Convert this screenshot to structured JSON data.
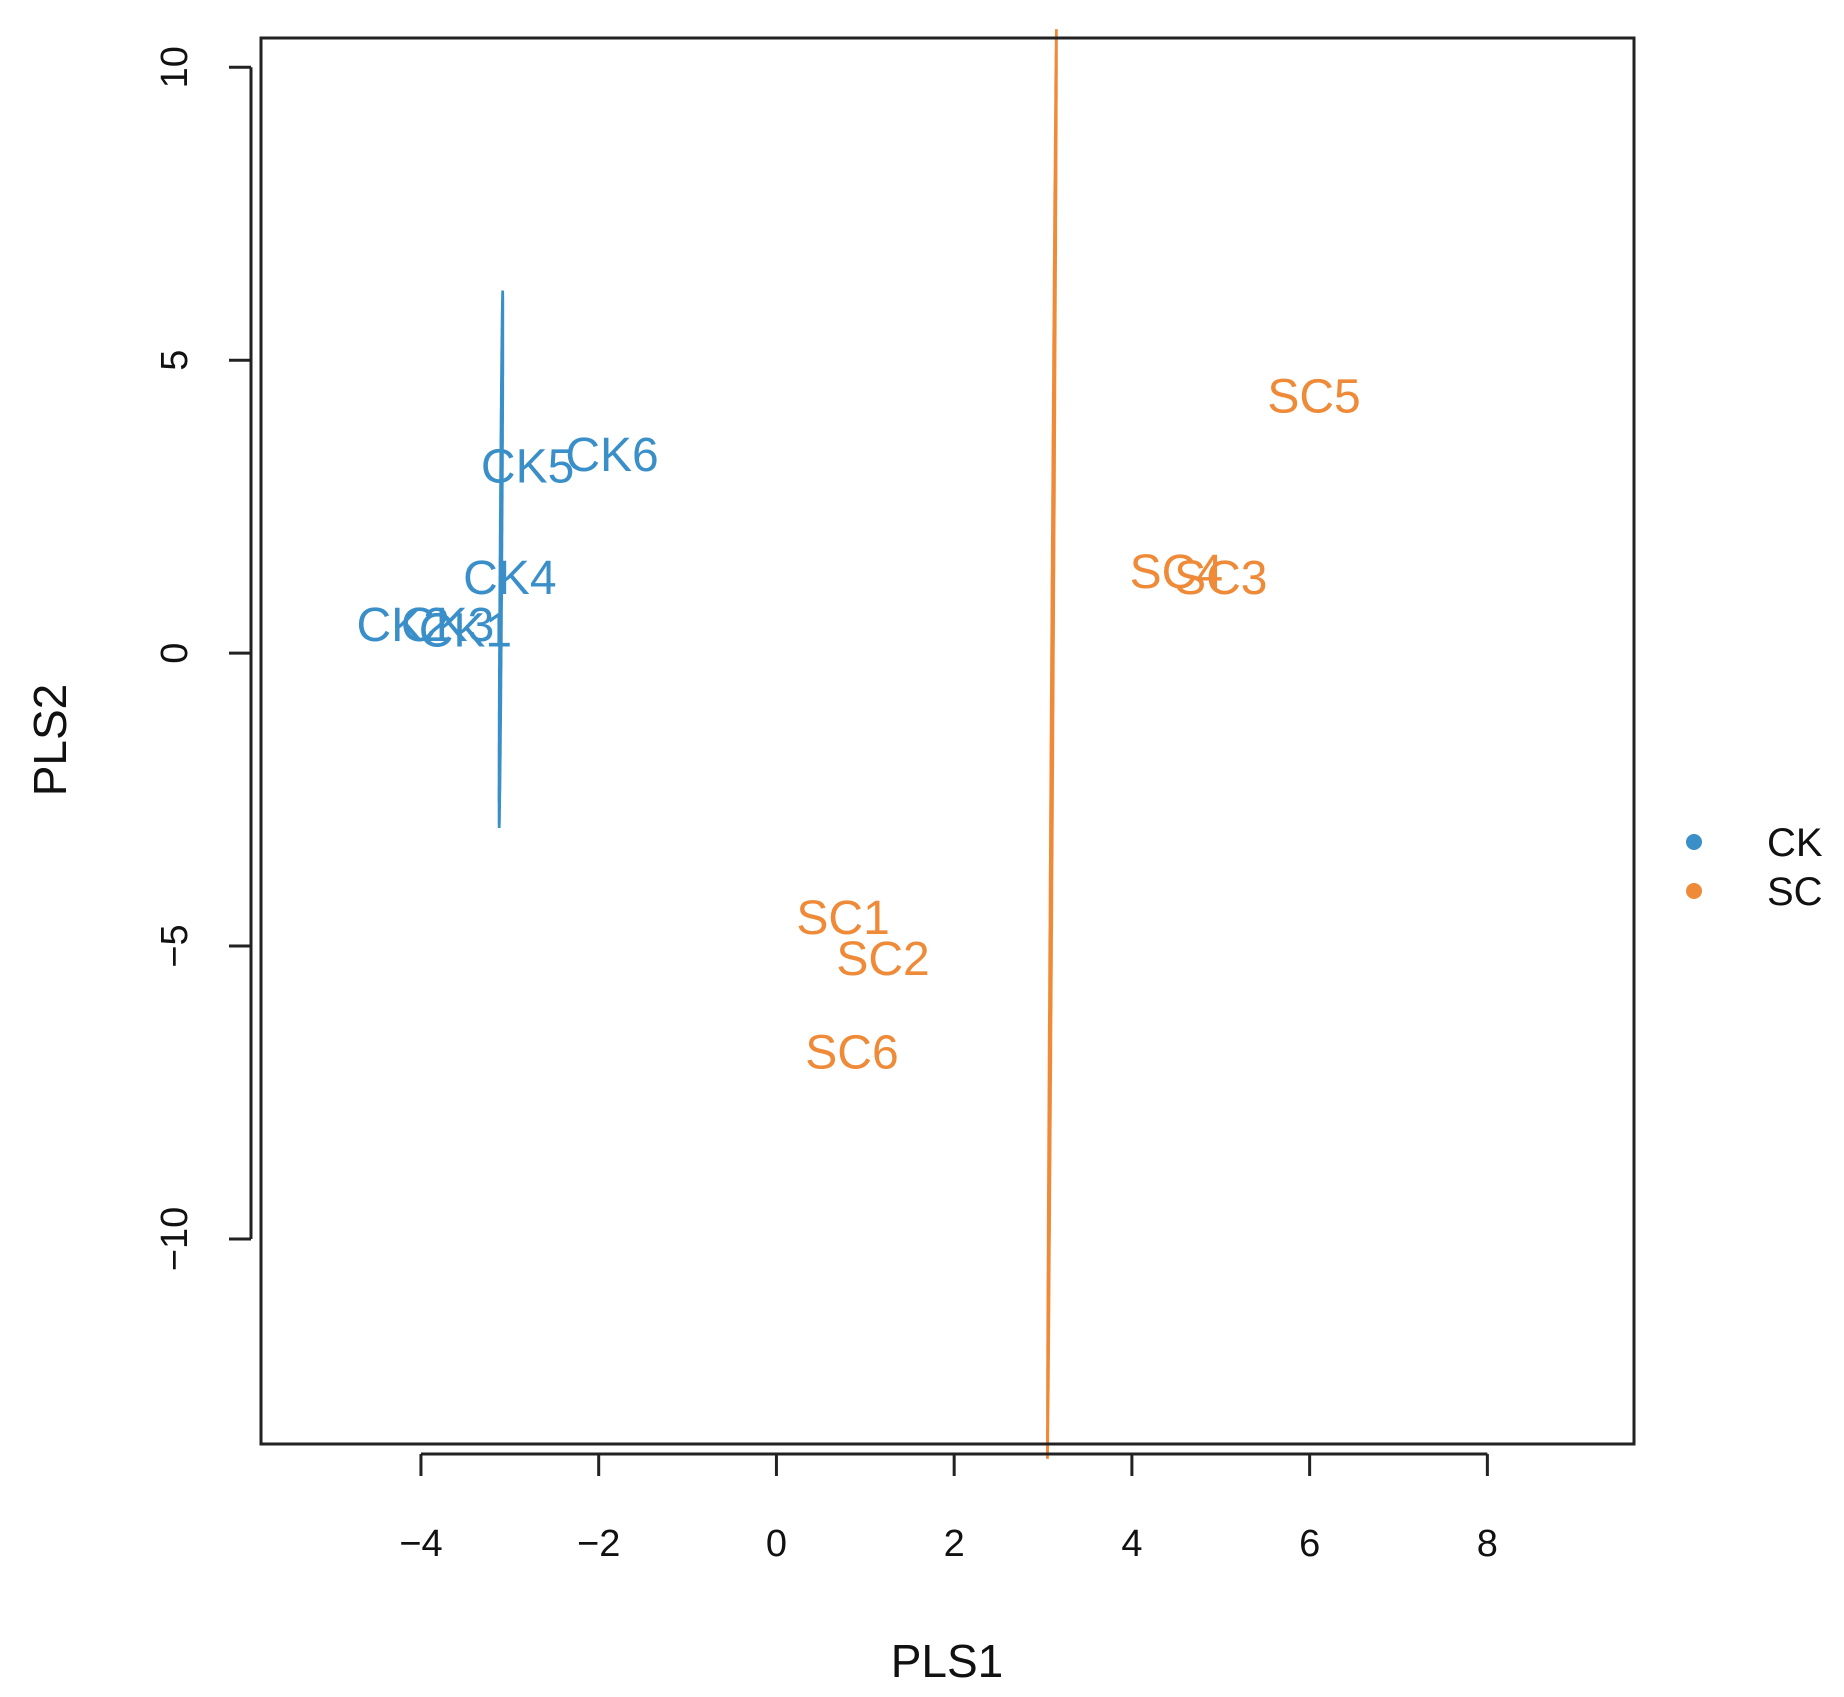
{
  "chart_data": {
    "type": "scatter",
    "title": "",
    "xlabel": "PLS1",
    "ylabel": "PLS2",
    "xlim": [
      -5.8,
      9.65
    ],
    "ylim": [
      -13.5,
      10.5
    ],
    "xticks": [
      -4,
      -2,
      0,
      2,
      4,
      6,
      8
    ],
    "yticks": [
      -10,
      -5,
      0,
      5,
      10
    ],
    "xtick_labels": [
      "−4",
      "−2",
      "0",
      "2",
      "4",
      "6",
      "8"
    ],
    "ytick_labels": [
      "−10",
      "−5",
      "0",
      "5",
      "10"
    ],
    "grid": false,
    "legend_position": "right",
    "colors": {
      "CK": "#3a8fc9",
      "SC": "#ee8a38"
    },
    "series": [
      {
        "name": "CK",
        "color": "#3a8fc9",
        "points": [
          {
            "label": "CK1",
            "x": -3.5,
            "y": 0.4
          },
          {
            "label": "CK2",
            "x": -4.2,
            "y": 0.5
          },
          {
            "label": "CK3",
            "x": -3.7,
            "y": 0.5
          },
          {
            "label": "CK4",
            "x": -3.0,
            "y": 1.3
          },
          {
            "label": "CK5",
            "x": -2.8,
            "y": 3.2
          },
          {
            "label": "CK6",
            "x": -1.85,
            "y": 3.4
          }
        ],
        "ellipse": {
          "center": [
            -3.1,
            1.6
          ],
          "rx": 3.25,
          "ry": 0.8,
          "angle_deg": -54.5
        }
      },
      {
        "name": "SC",
        "color": "#ee8a38",
        "points": [
          {
            "label": "SC1",
            "x": 0.75,
            "y": -4.5
          },
          {
            "label": "SC2",
            "x": 1.2,
            "y": -5.2
          },
          {
            "label": "SC3",
            "x": 5.0,
            "y": 1.3
          },
          {
            "label": "SC4",
            "x": 4.5,
            "y": 1.4
          },
          {
            "label": "SC5",
            "x": 6.05,
            "y": 4.4
          },
          {
            "label": "SC6",
            "x": 0.85,
            "y": -6.8
          }
        ],
        "ellipse": {
          "center": [
            3.1,
            -1.55
          ],
          "rx": 8.45,
          "ry": 0.82,
          "angle_deg": -57.6
        }
      }
    ]
  }
}
